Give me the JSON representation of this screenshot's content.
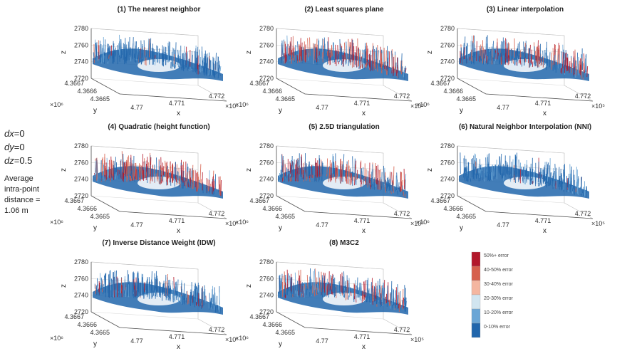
{
  "side": {
    "dx": "dx",
    "dx_val": "=0",
    "dy": "dy",
    "dy_val": "=0",
    "dz": "dz",
    "dz_val": "=0.5",
    "avg_line1": "Average",
    "avg_line2": "intra-point",
    "avg_line3": "distance =",
    "avg_line4": "1.06 m"
  },
  "chart_data": {
    "type": "scatter",
    "panels": [
      {
        "title": "(1) The nearest neighbor",
        "red_fraction": 0.06
      },
      {
        "title": "(2) Least squares plane",
        "red_fraction": 0.55
      },
      {
        "title": "(3) Linear interpolation",
        "red_fraction": 0.42
      },
      {
        "title": "(4) Quadratic (height function)",
        "red_fraction": 0.62
      },
      {
        "title": "(5) 2.5D triangulation",
        "red_fraction": 0.55
      },
      {
        "title": "(6) Natural Neighbor Interpolation (NNI)",
        "red_fraction": 0.03
      },
      {
        "title": "(7) Inverse Distance Weight (IDW)",
        "red_fraction": 0.1
      },
      {
        "title": "(8) M3C2",
        "red_fraction": 0.38
      }
    ],
    "z_ticks": [
      "2780",
      "2760",
      "2740",
      "2720"
    ],
    "y_ticks": [
      "4.3667",
      "4.3666",
      "4.3665"
    ],
    "x_ticks": [
      "4.77",
      "4.771",
      "4.772"
    ],
    "xlabel": "x",
    "ylabel": "y",
    "zlabel": "z",
    "y_exp": "×10⁶",
    "x_exp": "×10⁵",
    "legend": [
      {
        "label": "50%+ error",
        "color": "#b2182b"
      },
      {
        "label": "40-50% error",
        "color": "#d6604d"
      },
      {
        "label": "30-40% error",
        "color": "#f4b6a0"
      },
      {
        "label": "20-30% error",
        "color": "#d1e5f0"
      },
      {
        "label": "10-20% error",
        "color": "#6aa6d6"
      },
      {
        "label": "0-10% error",
        "color": "#2166ac"
      }
    ]
  }
}
